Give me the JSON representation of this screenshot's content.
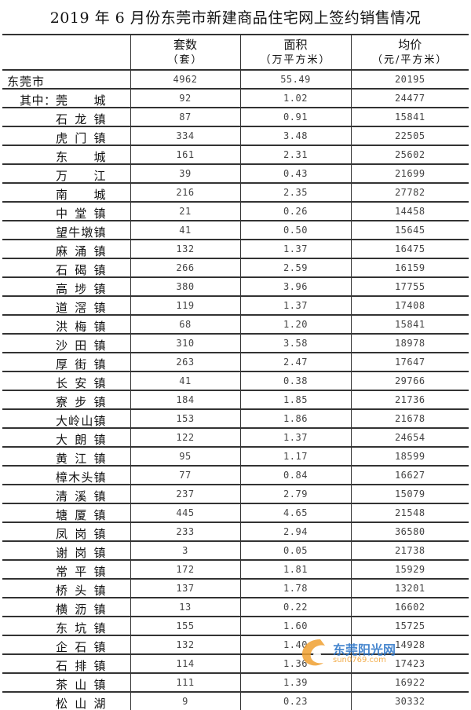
{
  "title": "2019 年 6 月份东莞市新建商品住宅网上签约销售情况",
  "headers": [
    {
      "label": "套数",
      "unit": "（套）"
    },
    {
      "label": "面积",
      "unit": "（万平方米）"
    },
    {
      "label": "均价",
      "unit": "（元/平方米）"
    }
  ],
  "prefix": "其中：",
  "rows": [
    {
      "name": "东莞市",
      "units": "4962",
      "area": "55.49",
      "price": "20195"
    },
    {
      "name": "莞城",
      "units": "92",
      "area": "1.02",
      "price": "24477"
    },
    {
      "name": "石龙镇",
      "units": "87",
      "area": "0.91",
      "price": "15841"
    },
    {
      "name": "虎门镇",
      "units": "334",
      "area": "3.48",
      "price": "22505"
    },
    {
      "name": "东城",
      "units": "161",
      "area": "2.31",
      "price": "25602"
    },
    {
      "name": "万江",
      "units": "39",
      "area": "0.43",
      "price": "21699"
    },
    {
      "name": "南城",
      "units": "216",
      "area": "2.35",
      "price": "27782"
    },
    {
      "name": "中堂镇",
      "units": "21",
      "area": "0.26",
      "price": "14458"
    },
    {
      "name": "望牛墩镇",
      "units": "41",
      "area": "0.50",
      "price": "15645"
    },
    {
      "name": "麻涌镇",
      "units": "132",
      "area": "1.37",
      "price": "16475"
    },
    {
      "name": "石碣镇",
      "units": "266",
      "area": "2.59",
      "price": "16159"
    },
    {
      "name": "高埗镇",
      "units": "380",
      "area": "3.96",
      "price": "17755"
    },
    {
      "name": "道滘镇",
      "units": "119",
      "area": "1.37",
      "price": "17408"
    },
    {
      "name": "洪梅镇",
      "units": "68",
      "area": "1.20",
      "price": "15841"
    },
    {
      "name": "沙田镇",
      "units": "310",
      "area": "3.58",
      "price": "18978"
    },
    {
      "name": "厚街镇",
      "units": "263",
      "area": "2.47",
      "price": "17647"
    },
    {
      "name": "长安镇",
      "units": "41",
      "area": "0.38",
      "price": "29766"
    },
    {
      "name": "寮步镇",
      "units": "184",
      "area": "1.85",
      "price": "21736"
    },
    {
      "name": "大岭山镇",
      "units": "153",
      "area": "1.86",
      "price": "21678"
    },
    {
      "name": "大朗镇",
      "units": "122",
      "area": "1.37",
      "price": "24654"
    },
    {
      "name": "黄江镇",
      "units": "95",
      "area": "1.17",
      "price": "18599"
    },
    {
      "name": "樟木头镇",
      "units": "77",
      "area": "0.84",
      "price": "16627"
    },
    {
      "name": "清溪镇",
      "units": "237",
      "area": "2.79",
      "price": "15079"
    },
    {
      "name": "塘厦镇",
      "units": "445",
      "area": "4.65",
      "price": "21548"
    },
    {
      "name": "凤岗镇",
      "units": "233",
      "area": "2.94",
      "price": "36580"
    },
    {
      "name": "谢岗镇",
      "units": "3",
      "area": "0.05",
      "price": "21738"
    },
    {
      "name": "常平镇",
      "units": "172",
      "area": "1.81",
      "price": "15929"
    },
    {
      "name": "桥头镇",
      "units": "137",
      "area": "1.78",
      "price": "13201"
    },
    {
      "name": "横沥镇",
      "units": "13",
      "area": "0.22",
      "price": "16602"
    },
    {
      "name": "东坑镇",
      "units": "155",
      "area": "1.60",
      "price": "15725"
    },
    {
      "name": "企石镇",
      "units": "132",
      "area": "1.40",
      "price": "14928"
    },
    {
      "name": "石排镇",
      "units": "114",
      "area": "1.36",
      "price": "17423"
    },
    {
      "name": "茶山镇",
      "units": "111",
      "area": "1.39",
      "price": "16922"
    },
    {
      "name": "松山湖",
      "units": "9",
      "area": "0.23",
      "price": "30332"
    }
  ],
  "watermark": {
    "text": "东莞阳光网",
    "url": "sun0769.com",
    "colors": {
      "text": "#2a74c7",
      "logo": "#f0a030"
    }
  }
}
